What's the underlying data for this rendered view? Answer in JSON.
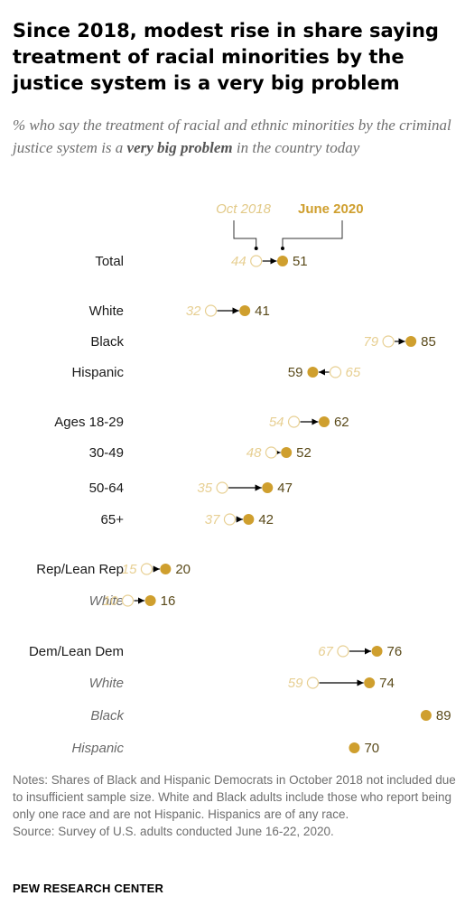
{
  "title": "Since 2018, modest rise in share saying treatment of racial minorities by the justice system is a very big problem",
  "subtitle": {
    "before": "% who say the treatment of racial and ethnic minorities by the criminal justice system is a ",
    "emphasis": "very big problem",
    "after": " in the country today"
  },
  "notes": {
    "line1": "Notes: Shares of Black and Hispanic Democrats in October 2018 not included due to insufficient sample size. White and Black adults include those who report being only one race and are not Hispanic. Hispanics are of any race.",
    "line2": "Source: Survey of U.S. adults conducted June 16-22, 2020."
  },
  "brand": "PEW RESEARCH CENTER",
  "colors": {
    "june_2020": "#cf9f2e",
    "oct_2018": "#e7cf92",
    "arrow": "#000000"
  },
  "chart_data": {
    "type": "dot-arrow",
    "series": [
      {
        "name": "Oct 2018",
        "marker": "open-circle"
      },
      {
        "name": "June 2020",
        "marker": "filled-circle"
      }
    ],
    "rows": [
      {
        "label": "Total",
        "sub": false,
        "oct2018": 44,
        "jun2020": 51
      },
      {
        "label": "White",
        "sub": false,
        "oct2018": 32,
        "jun2020": 41
      },
      {
        "label": "Black",
        "sub": false,
        "oct2018": 79,
        "jun2020": 85
      },
      {
        "label": "Hispanic",
        "sub": false,
        "oct2018": 65,
        "jun2020": 59
      },
      {
        "label": "Ages 18-29",
        "sub": false,
        "oct2018": 54,
        "jun2020": 62
      },
      {
        "label": "30-49",
        "sub": false,
        "oct2018": 48,
        "jun2020": 52
      },
      {
        "label": "50-64",
        "sub": false,
        "oct2018": 35,
        "jun2020": 47
      },
      {
        "label": "65+",
        "sub": false,
        "oct2018": 37,
        "jun2020": 42
      },
      {
        "label": "Rep/Lean Rep",
        "sub": false,
        "oct2018": 15,
        "jun2020": 20
      },
      {
        "label": "White",
        "sub": true,
        "oct2018": 10,
        "jun2020": 16
      },
      {
        "label": "Dem/Lean Dem",
        "sub": false,
        "oct2018": 67,
        "jun2020": 76
      },
      {
        "label": "White",
        "sub": true,
        "oct2018": 59,
        "jun2020": 74
      },
      {
        "label": "Black",
        "sub": true,
        "oct2018": null,
        "jun2020": 89
      },
      {
        "label": "Hispanic",
        "sub": true,
        "oct2018": null,
        "jun2020": 70
      }
    ]
  }
}
